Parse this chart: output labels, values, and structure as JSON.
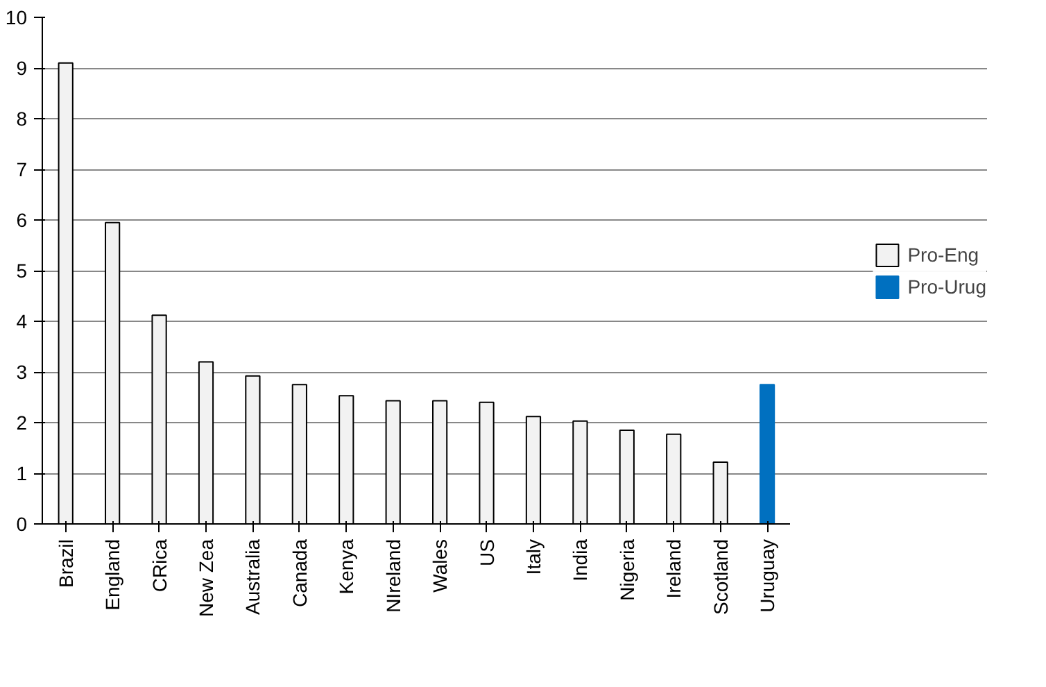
{
  "chart_data": {
    "type": "bar",
    "categories": [
      "Brazil",
      "England",
      "CRica",
      "New Zea",
      "Australia",
      "Canada",
      "Kenya",
      "NIreland",
      "Wales",
      "US",
      "Italy",
      "India",
      "Nigeria",
      "Ireland",
      "Scotland",
      "Uruguay"
    ],
    "series": [
      {
        "name": "Pro-Eng",
        "color": "#f2f2f2",
        "values": [
          9.1,
          5.95,
          4.12,
          3.2,
          2.92,
          2.75,
          2.53,
          2.43,
          2.43,
          2.4,
          2.12,
          2.03,
          1.85,
          1.77,
          1.22,
          null
        ]
      },
      {
        "name": "Pro-Urug",
        "color": "#0070c0",
        "values": [
          null,
          null,
          null,
          null,
          null,
          null,
          null,
          null,
          null,
          null,
          null,
          null,
          null,
          null,
          null,
          2.75
        ]
      }
    ],
    "ylim": [
      0,
      10
    ],
    "yticks": [
      0,
      1,
      2,
      3,
      4,
      5,
      6,
      7,
      8,
      9,
      10
    ],
    "grid": "y",
    "legend": "right"
  }
}
